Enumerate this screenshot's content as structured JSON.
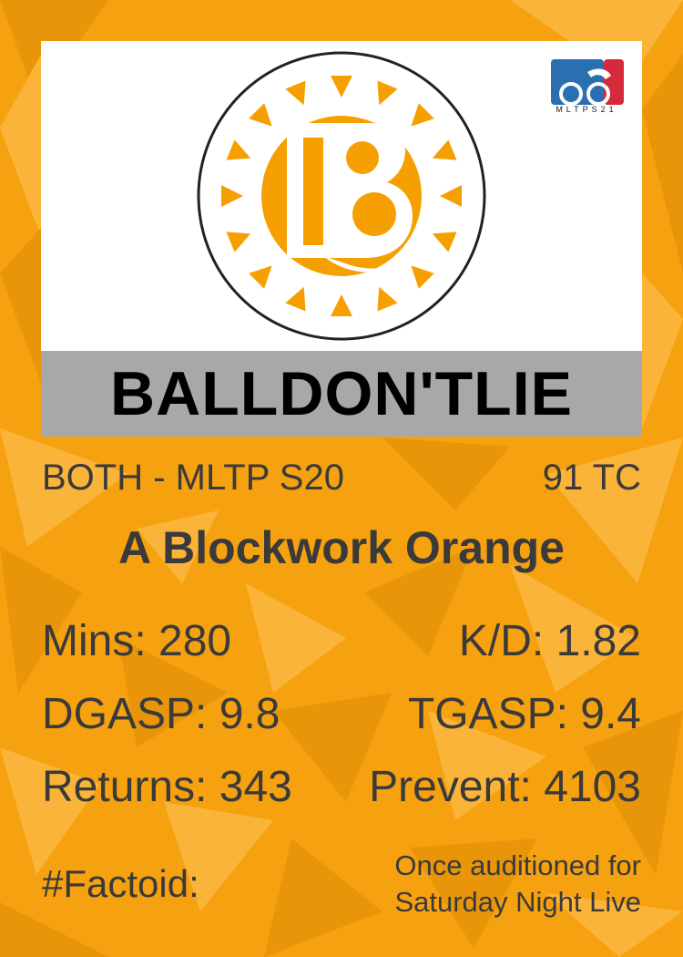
{
  "card": {
    "player_name": "BALLDON'TLIE",
    "position_season": "BOTH - MLTP S20",
    "team_abbr": "91 TC",
    "team_name": "A Blockwork Orange",
    "league_badge_text": "MLTPS21",
    "team_logo_icon": "sunburst-b-icon",
    "league_logo_icon": "mltp-ball-icon"
  },
  "stats": {
    "mins": "Mins: 280",
    "kd": "K/D: 1.82",
    "dgasp": "DGASP: 9.8",
    "tgasp": "TGASP: 9.4",
    "returns": "Returns: 343",
    "prevent": "Prevent: 4103"
  },
  "factoid": {
    "label": "#Factoid:",
    "line1": "Once auditioned for",
    "line2": "Saturday Night Live"
  },
  "colors": {
    "background": "#f6a10f",
    "accent_orange": "#f5a000",
    "name_bar": "#a8a8a8",
    "text": "#3a3a3a"
  }
}
